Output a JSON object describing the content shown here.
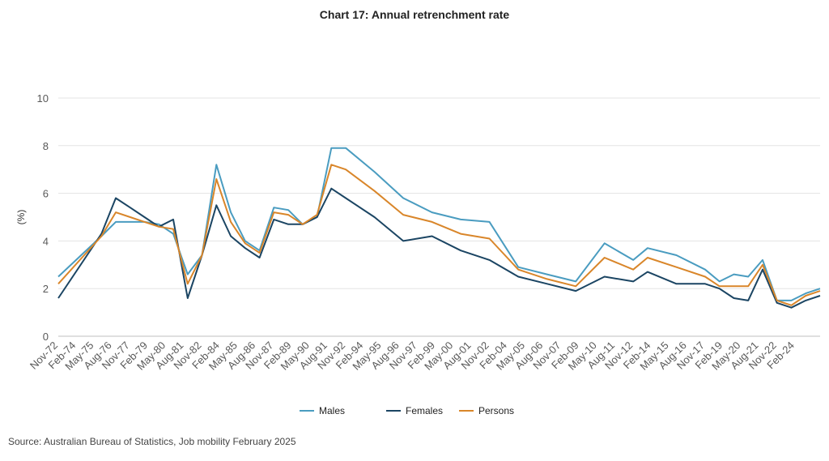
{
  "chart_data": {
    "type": "line",
    "title": "Chart 17: Annual retrenchment rate",
    "ylabel": "(%)",
    "ylim": [
      0,
      10
    ],
    "yticks": [
      0,
      2,
      4,
      6,
      8,
      10
    ],
    "grid": true,
    "legend_position": "bottom-center",
    "categories": [
      "Nov-72",
      "Feb-74",
      "May-75",
      "Aug-76",
      "Nov-77",
      "Feb-79",
      "May-80",
      "Aug-81",
      "Nov-82",
      "Feb-84",
      "May-85",
      "Aug-86",
      "Nov-87",
      "Feb-89",
      "May-90",
      "Aug-91",
      "Nov-92",
      "Feb-94",
      "May-95",
      "Aug-96",
      "Nov-97",
      "Feb-99",
      "May-00",
      "Aug-01",
      "Nov-02",
      "Feb-04",
      "May-05",
      "Aug-06",
      "Nov-07",
      "Feb-09",
      "May-10",
      "Aug-11",
      "Nov-12",
      "Feb-14",
      "May-15",
      "Aug-16",
      "Nov-17",
      "Feb-19",
      "May-20",
      "Aug-21",
      "Nov-22",
      "Feb-24"
    ],
    "series": [
      {
        "name": "Males",
        "color": "#4a9cc0",
        "points": [
          [
            "Nov-72",
            2.5
          ],
          [
            "Nov-75",
            4.2
          ],
          [
            "Nov-76",
            4.8
          ],
          [
            "Nov-77",
            4.8
          ],
          [
            "Nov-78",
            4.8
          ],
          [
            "Nov-79",
            4.7
          ],
          [
            "Nov-80",
            4.3
          ],
          [
            "Nov-81",
            2.6
          ],
          [
            "Nov-82",
            3.4
          ],
          [
            "Nov-83",
            7.2
          ],
          [
            "Nov-84",
            5.2
          ],
          [
            "Nov-85",
            4.0
          ],
          [
            "Nov-86",
            3.6
          ],
          [
            "Nov-87",
            5.4
          ],
          [
            "Nov-88",
            5.3
          ],
          [
            "Nov-89",
            4.7
          ],
          [
            "Nov-90",
            5.0
          ],
          [
            "Nov-91",
            7.9
          ],
          [
            "Nov-92",
            7.9
          ],
          [
            "Nov-94",
            6.9
          ],
          [
            "Nov-96",
            5.8
          ],
          [
            "Nov-98",
            5.2
          ],
          [
            "Nov-00",
            4.9
          ],
          [
            "Nov-02",
            4.8
          ],
          [
            "Nov-04",
            2.9
          ],
          [
            "Nov-06",
            2.6
          ],
          [
            "Nov-08",
            2.3
          ],
          [
            "Nov-10",
            3.9
          ],
          [
            "Nov-12",
            3.2
          ],
          [
            "Nov-13",
            3.7
          ],
          [
            "Nov-15",
            3.4
          ],
          [
            "Nov-17",
            2.8
          ],
          [
            "Nov-18",
            2.3
          ],
          [
            "Nov-19",
            2.6
          ],
          [
            "Nov-20",
            2.5
          ],
          [
            "Nov-21",
            3.2
          ],
          [
            "Nov-22",
            1.5
          ],
          [
            "Nov-23",
            1.5
          ],
          [
            "Nov-24",
            1.8
          ],
          [
            "Nov-25",
            2.0
          ]
        ]
      },
      {
        "name": "Females",
        "color": "#1b4563",
        "points": [
          [
            "Nov-72",
            1.6
          ],
          [
            "Nov-75",
            4.3
          ],
          [
            "Nov-76",
            5.8
          ],
          [
            "Nov-77",
            5.4
          ],
          [
            "Nov-78",
            5.0
          ],
          [
            "Nov-79",
            4.6
          ],
          [
            "Nov-80",
            4.9
          ],
          [
            "Nov-81",
            1.6
          ],
          [
            "Nov-82",
            3.4
          ],
          [
            "Nov-83",
            5.5
          ],
          [
            "Nov-84",
            4.2
          ],
          [
            "Nov-85",
            3.7
          ],
          [
            "Nov-86",
            3.3
          ],
          [
            "Nov-87",
            4.9
          ],
          [
            "Nov-88",
            4.7
          ],
          [
            "Nov-89",
            4.7
          ],
          [
            "Nov-90",
            5.0
          ],
          [
            "Nov-91",
            6.2
          ],
          [
            "Nov-92",
            5.8
          ],
          [
            "Nov-94",
            5.0
          ],
          [
            "Nov-96",
            4.0
          ],
          [
            "Nov-98",
            4.2
          ],
          [
            "Nov-00",
            3.6
          ],
          [
            "Nov-02",
            3.2
          ],
          [
            "Nov-04",
            2.5
          ],
          [
            "Nov-06",
            2.2
          ],
          [
            "Nov-08",
            1.9
          ],
          [
            "Nov-10",
            2.5
          ],
          [
            "Nov-12",
            2.3
          ],
          [
            "Nov-13",
            2.7
          ],
          [
            "Nov-15",
            2.2
          ],
          [
            "Nov-17",
            2.2
          ],
          [
            "Nov-18",
            2.0
          ],
          [
            "Nov-19",
            1.6
          ],
          [
            "Nov-20",
            1.5
          ],
          [
            "Nov-21",
            2.8
          ],
          [
            "Nov-22",
            1.4
          ],
          [
            "Nov-23",
            1.2
          ],
          [
            "Nov-24",
            1.5
          ],
          [
            "Nov-25",
            1.7
          ]
        ]
      },
      {
        "name": "Persons",
        "color": "#d9862a",
        "points": [
          [
            "Nov-72",
            2.2
          ],
          [
            "Nov-75",
            4.2
          ],
          [
            "Nov-76",
            5.2
          ],
          [
            "Nov-77",
            5.0
          ],
          [
            "Nov-78",
            4.8
          ],
          [
            "Nov-79",
            4.6
          ],
          [
            "Nov-80",
            4.5
          ],
          [
            "Nov-81",
            2.2
          ],
          [
            "Nov-82",
            3.4
          ],
          [
            "Nov-83",
            6.6
          ],
          [
            "Nov-84",
            4.8
          ],
          [
            "Nov-85",
            3.9
          ],
          [
            "Nov-86",
            3.5
          ],
          [
            "Nov-87",
            5.2
          ],
          [
            "Nov-88",
            5.1
          ],
          [
            "Nov-89",
            4.7
          ],
          [
            "Nov-90",
            5.1
          ],
          [
            "Nov-91",
            7.2
          ],
          [
            "Nov-92",
            7.0
          ],
          [
            "Nov-94",
            6.1
          ],
          [
            "Nov-96",
            5.1
          ],
          [
            "Nov-98",
            4.8
          ],
          [
            "Nov-00",
            4.3
          ],
          [
            "Nov-02",
            4.1
          ],
          [
            "Nov-04",
            2.8
          ],
          [
            "Nov-06",
            2.4
          ],
          [
            "Nov-08",
            2.1
          ],
          [
            "Nov-10",
            3.3
          ],
          [
            "Nov-12",
            2.8
          ],
          [
            "Nov-13",
            3.3
          ],
          [
            "Nov-15",
            2.9
          ],
          [
            "Nov-17",
            2.5
          ],
          [
            "Nov-18",
            2.1
          ],
          [
            "Nov-19",
            2.1
          ],
          [
            "Nov-20",
            2.1
          ],
          [
            "Nov-21",
            3.0
          ],
          [
            "Nov-22",
            1.5
          ],
          [
            "Nov-23",
            1.3
          ],
          [
            "Nov-24",
            1.7
          ],
          [
            "Nov-25",
            1.9
          ]
        ]
      }
    ]
  },
  "source": "Source: Australian Bureau of Statistics, Job mobility February 2025"
}
